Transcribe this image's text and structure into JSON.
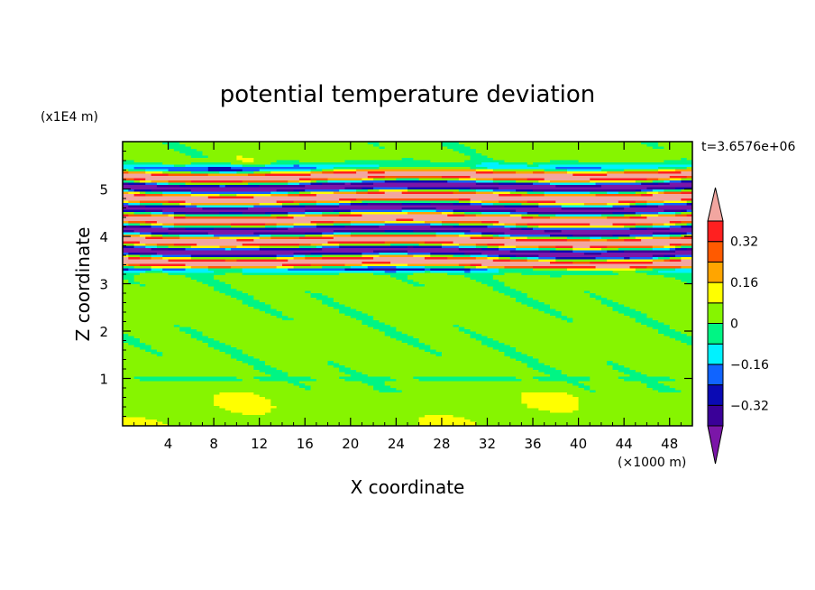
{
  "chart_data": {
    "type": "heatmap",
    "title": "potential temperature deviation",
    "xlabel": "X coordinate",
    "ylabel": "Z coordinate",
    "x_unit": "(×1000 m)",
    "y_unit": "(x1E4 m)",
    "time_label": "t=3.6576e+06",
    "xlim": [
      0,
      50
    ],
    "ylim": [
      0,
      6
    ],
    "x_ticks": [
      4,
      8,
      12,
      16,
      20,
      24,
      28,
      32,
      36,
      40,
      44,
      48
    ],
    "y_ticks": [
      1,
      2,
      3,
      4,
      5
    ],
    "colorbar": {
      "levels": [
        -0.48,
        -0.4,
        -0.32,
        -0.24,
        -0.16,
        -0.08,
        0,
        0.08,
        0.16,
        0.24,
        0.32,
        0.4
      ],
      "tick_labels": [
        "0.32",
        "0.16",
        "0",
        "−0.16",
        "−0.32"
      ],
      "tick_values": [
        0.32,
        0.16,
        0,
        -0.16,
        -0.32
      ],
      "colors": [
        "#7b16a8",
        "#3a0098",
        "#0a0ab4",
        "#1064ff",
        "#00f2ff",
        "#00f584",
        "#86f500",
        "#ffff00",
        "#ffa500",
        "#ff5a00",
        "#ff2020",
        "#f2a6a0"
      ],
      "extend": "both"
    },
    "bands": [
      {
        "z_from": 0,
        "z_to": 3.3,
        "description": "near-neutral layer, values between 0 and 0.08 with patches of -0.08 to 0"
      },
      {
        "z": 1.0,
        "value": -0.12,
        "description": "thin thin cyan/blue line near z=1"
      },
      {
        "z_from": 3.3,
        "z_to": 5.4,
        "description": "stacked alternating warm/cold layers, values from -0.48 to 0.48"
      },
      {
        "z_from": 5.4,
        "z_to": 6.0,
        "description": "upper layer near 0 to 0.08"
      }
    ]
  }
}
